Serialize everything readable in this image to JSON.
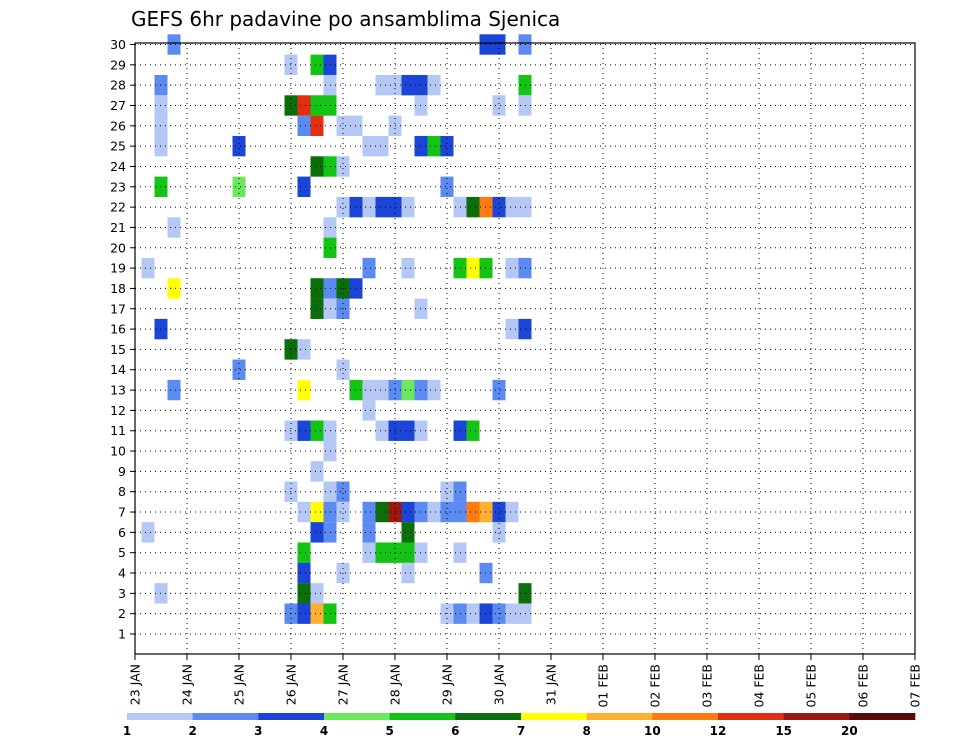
{
  "chart_data": {
    "type": "heatmap",
    "title": "GEFS 6hr padavine po ansamblima Sjenica",
    "y_ticks": [
      "1",
      "2",
      "3",
      "4",
      "5",
      "6",
      "7",
      "8",
      "9",
      "10",
      "11",
      "12",
      "13",
      "14",
      "15",
      "16",
      "17",
      "18",
      "19",
      "20",
      "21",
      "22",
      "23",
      "24",
      "25",
      "26",
      "27",
      "28",
      "29",
      "30"
    ],
    "x_ticks": [
      "23 JAN",
      "24 JAN",
      "25 JAN",
      "26 JAN",
      "27 JAN",
      "28 JAN",
      "29 JAN",
      "30 JAN",
      "31 JAN",
      "01 FEB",
      "02 FEB",
      "03 FEB",
      "04 FEB",
      "05 FEB",
      "06 FEB",
      "07 FEB"
    ],
    "x_unit": "6-hour steps from 23 JAN 00Z",
    "y_unit": "ensemble member",
    "colorbar": {
      "labels": [
        "1",
        "2",
        "3",
        "4",
        "5",
        "6",
        "7",
        "8",
        "10",
        "12",
        "15",
        "20"
      ],
      "colors": [
        "#b5c8f5",
        "#5b8bf0",
        "#1a45d6",
        "#6ce860",
        "#14c414",
        "#0b6e0b",
        "#ffff00",
        "#ffb030",
        "#ff7a10",
        "#e03010",
        "#9a1a10",
        "#5a0808"
      ]
    },
    "cells": [
      [
        30,
        3,
        2
      ],
      [
        30,
        27,
        3
      ],
      [
        30,
        28,
        3
      ],
      [
        30,
        30,
        2
      ],
      [
        29,
        12,
        1
      ],
      [
        29,
        14,
        5
      ],
      [
        29,
        15,
        3
      ],
      [
        28,
        2,
        2
      ],
      [
        28,
        15,
        1
      ],
      [
        28,
        19,
        1
      ],
      [
        28,
        20,
        1
      ],
      [
        28,
        21,
        3
      ],
      [
        28,
        22,
        3
      ],
      [
        28,
        23,
        1
      ],
      [
        28,
        30,
        5
      ],
      [
        27,
        2,
        1
      ],
      [
        27,
        12,
        6
      ],
      [
        27,
        13,
        10
      ],
      [
        27,
        14,
        5
      ],
      [
        27,
        15,
        5
      ],
      [
        27,
        22,
        1
      ],
      [
        27,
        28,
        1
      ],
      [
        27,
        30,
        1
      ],
      [
        26,
        2,
        1
      ],
      [
        26,
        13,
        2
      ],
      [
        26,
        14,
        10
      ],
      [
        26,
        16,
        1
      ],
      [
        26,
        17,
        1
      ],
      [
        26,
        20,
        1
      ],
      [
        25,
        2,
        1
      ],
      [
        25,
        8,
        3
      ],
      [
        25,
        18,
        1
      ],
      [
        25,
        19,
        1
      ],
      [
        25,
        22,
        3
      ],
      [
        25,
        23,
        5
      ],
      [
        25,
        24,
        3
      ],
      [
        24,
        14,
        6
      ],
      [
        24,
        15,
        5
      ],
      [
        24,
        16,
        1
      ],
      [
        23,
        2,
        5
      ],
      [
        23,
        8,
        4
      ],
      [
        23,
        13,
        3
      ],
      [
        23,
        24,
        2
      ],
      [
        22,
        16,
        1
      ],
      [
        22,
        17,
        3
      ],
      [
        22,
        18,
        1
      ],
      [
        22,
        19,
        3
      ],
      [
        22,
        20,
        3
      ],
      [
        22,
        21,
        1
      ],
      [
        22,
        25,
        1
      ],
      [
        22,
        26,
        6
      ],
      [
        22,
        27,
        9
      ],
      [
        22,
        28,
        3
      ],
      [
        22,
        29,
        1
      ],
      [
        22,
        30,
        1
      ],
      [
        21,
        3,
        1
      ],
      [
        21,
        15,
        1
      ],
      [
        20,
        15,
        5
      ],
      [
        19,
        1,
        1
      ],
      [
        19,
        18,
        2
      ],
      [
        19,
        21,
        1
      ],
      [
        19,
        25,
        5
      ],
      [
        19,
        26,
        7
      ],
      [
        19,
        27,
        5
      ],
      [
        19,
        29,
        1
      ],
      [
        19,
        30,
        2
      ],
      [
        18,
        3,
        7
      ],
      [
        18,
        14,
        6
      ],
      [
        18,
        15,
        2
      ],
      [
        18,
        16,
        6
      ],
      [
        18,
        17,
        3
      ],
      [
        17,
        14,
        6
      ],
      [
        17,
        15,
        1
      ],
      [
        17,
        16,
        2
      ],
      [
        17,
        22,
        1
      ],
      [
        16,
        2,
        3
      ],
      [
        16,
        29,
        1
      ],
      [
        16,
        30,
        3
      ],
      [
        15,
        12,
        6
      ],
      [
        15,
        13,
        1
      ],
      [
        14,
        8,
        2
      ],
      [
        14,
        16,
        1
      ],
      [
        13,
        3,
        2
      ],
      [
        13,
        13,
        7
      ],
      [
        13,
        17,
        5
      ],
      [
        13,
        18,
        1
      ],
      [
        13,
        19,
        1
      ],
      [
        13,
        20,
        2
      ],
      [
        13,
        21,
        4
      ],
      [
        13,
        22,
        2
      ],
      [
        13,
        23,
        1
      ],
      [
        13,
        28,
        2
      ],
      [
        12,
        18,
        1
      ],
      [
        11,
        12,
        1
      ],
      [
        11,
        13,
        3
      ],
      [
        11,
        14,
        5
      ],
      [
        11,
        15,
        1
      ],
      [
        11,
        19,
        1
      ],
      [
        11,
        20,
        3
      ],
      [
        11,
        21,
        3
      ],
      [
        11,
        22,
        1
      ],
      [
        11,
        25,
        3
      ],
      [
        11,
        26,
        5
      ],
      [
        10,
        15,
        1
      ],
      [
        9,
        14,
        1
      ],
      [
        8,
        12,
        1
      ],
      [
        8,
        15,
        1
      ],
      [
        8,
        16,
        2
      ],
      [
        8,
        24,
        1
      ],
      [
        8,
        25,
        2
      ],
      [
        7,
        13,
        1
      ],
      [
        7,
        14,
        7
      ],
      [
        7,
        15,
        2
      ],
      [
        7,
        16,
        1
      ],
      [
        7,
        18,
        2
      ],
      [
        7,
        19,
        6
      ],
      [
        7,
        20,
        11
      ],
      [
        7,
        21,
        3
      ],
      [
        7,
        22,
        2
      ],
      [
        7,
        23,
        1
      ],
      [
        7,
        24,
        2
      ],
      [
        7,
        25,
        2
      ],
      [
        7,
        26,
        9
      ],
      [
        7,
        27,
        8
      ],
      [
        7,
        28,
        3
      ],
      [
        7,
        29,
        1
      ],
      [
        6,
        1,
        1
      ],
      [
        6,
        14,
        3
      ],
      [
        6,
        15,
        2
      ],
      [
        6,
        18,
        2
      ],
      [
        6,
        21,
        6
      ],
      [
        6,
        28,
        1
      ],
      [
        5,
        13,
        5
      ],
      [
        5,
        18,
        1
      ],
      [
        5,
        19,
        5
      ],
      [
        5,
        20,
        5
      ],
      [
        5,
        21,
        5
      ],
      [
        5,
        22,
        1
      ],
      [
        5,
        25,
        1
      ],
      [
        4,
        13,
        3
      ],
      [
        4,
        16,
        1
      ],
      [
        4,
        21,
        1
      ],
      [
        4,
        27,
        2
      ],
      [
        3,
        2,
        1
      ],
      [
        3,
        13,
        6
      ],
      [
        3,
        14,
        1
      ],
      [
        3,
        30,
        6
      ],
      [
        2,
        12,
        2
      ],
      [
        2,
        13,
        3
      ],
      [
        2,
        14,
        8
      ],
      [
        2,
        15,
        5
      ],
      [
        2,
        24,
        1
      ],
      [
        2,
        25,
        2
      ],
      [
        2,
        26,
        1
      ],
      [
        2,
        27,
        3
      ],
      [
        2,
        28,
        2
      ],
      [
        2,
        29,
        1
      ],
      [
        2,
        30,
        1
      ]
    ]
  }
}
